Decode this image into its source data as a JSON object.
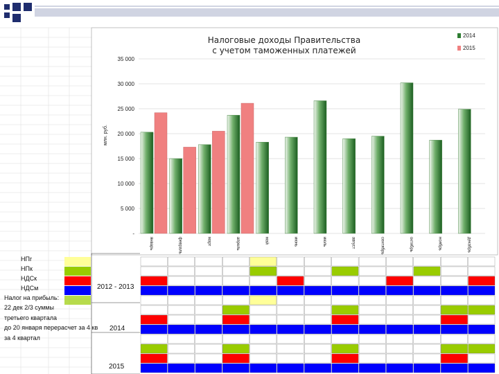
{
  "chart_data": {
    "type": "bar",
    "title_line1": "Налоговые доходы Правительства",
    "title_line2": "с учетом таможенных платежей",
    "ylabel": "млн. руб.",
    "ylim": [
      0,
      35000
    ],
    "y_ticks": [
      "35 000",
      "30 000",
      "25 000",
      "20 000",
      "15 000",
      "10 000",
      "5 000",
      "-"
    ],
    "legend": [
      {
        "name": "2014",
        "color": "#2e7d32"
      },
      {
        "name": "2015",
        "color": "#f08080"
      }
    ],
    "months": [
      {
        "label": "январь",
        "v2014": 20300,
        "v2015": 24200
      },
      {
        "label": "февраль",
        "v2014": 15000,
        "v2015": 17300
      },
      {
        "label": "март",
        "v2014": 17800,
        "v2015": 20500
      },
      {
        "label": "апрель",
        "v2014": 23700,
        "v2015": 26100
      },
      {
        "label": "май",
        "v2014": 18300,
        "v2015": null
      },
      {
        "label": "июнь",
        "v2014": 19300,
        "v2015": null
      },
      {
        "label": "июль",
        "v2014": 26600,
        "v2015": null
      },
      {
        "label": "август",
        "v2014": 19000,
        "v2015": null
      },
      {
        "label": "сентябрь",
        "v2014": 19500,
        "v2015": null
      },
      {
        "label": "октябрь",
        "v2014": 30200,
        "v2015": null
      },
      {
        "label": "ноябрь",
        "v2014": 18700,
        "v2015": null
      },
      {
        "label": "декабрь",
        "v2014": 24900,
        "v2015": null
      }
    ]
  },
  "legend_rows": [
    {
      "label": "НПг",
      "color": "#ffff99"
    },
    {
      "label": "НПк",
      "color": "#99cc00"
    },
    {
      "label": "НДСк",
      "color": "#ff0000"
    },
    {
      "label": "НДСм",
      "color": "#0000ff"
    }
  ],
  "notes": [
    "Налог на прибыль:",
    "22 дек 2/3 суммы",
    "третьего квартала",
    "до 20 января перерасчет за 4 кв",
    "за 4 квартал"
  ],
  "periods": {
    "p1": "2012 - 2013",
    "p2": "2014",
    "p3": "2015"
  },
  "colors": {
    "yellow": "#ffff99",
    "green": "#99cc00",
    "red": "#ff0000",
    "blue": "#0000ff",
    "navy": "#1f2d6e"
  }
}
